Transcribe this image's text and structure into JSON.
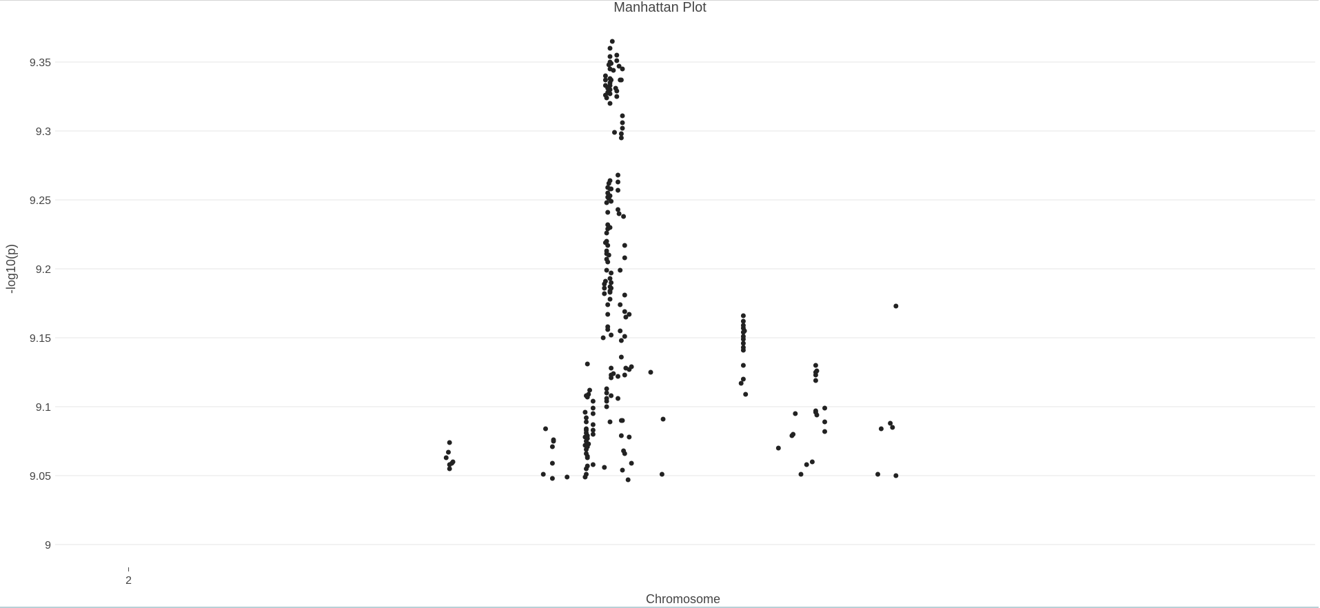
{
  "page": {
    "title": "Manhattan Plot",
    "xlabel": "Chromosome",
    "ylabel": "-log10(p)"
  },
  "chart_data": {
    "type": "scatter",
    "title": "Manhattan Plot",
    "xlabel": "Chromosome",
    "ylabel": "-log10(p)",
    "x_ticks": [
      {
        "value": 2,
        "label": "2"
      }
    ],
    "xlim": [
      1.35,
      12.5
    ],
    "ylim": [
      8.985,
      9.385
    ],
    "y_ticks": [
      {
        "value": 9,
        "label": "9"
      },
      {
        "value": 9.05,
        "label": "9.05"
      },
      {
        "value": 9.1,
        "label": "9.1"
      },
      {
        "value": 9.15,
        "label": "9.15"
      },
      {
        "value": 9.2,
        "label": "9.2"
      },
      {
        "value": 9.25,
        "label": "9.25"
      },
      {
        "value": 9.3,
        "label": "9.3"
      },
      {
        "value": 9.35,
        "label": "9.35"
      }
    ],
    "grid": true,
    "point_color": "#222222",
    "points": [
      [
        4.81,
        9.063
      ],
      [
        4.83,
        9.067
      ],
      [
        4.84,
        9.074
      ],
      [
        4.84,
        9.058
      ],
      [
        4.84,
        9.055
      ],
      [
        4.86,
        9.059
      ],
      [
        4.87,
        9.06
      ],
      [
        5.67,
        9.051
      ],
      [
        5.69,
        9.084
      ],
      [
        5.75,
        9.048
      ],
      [
        5.75,
        9.071
      ],
      [
        5.76,
        9.075
      ],
      [
        5.76,
        9.076
      ],
      [
        5.75,
        9.059
      ],
      [
        5.88,
        9.049
      ],
      [
        6.06,
        9.131
      ],
      [
        6.05,
        9.108
      ],
      [
        6.06,
        9.107
      ],
      [
        6.07,
        9.109
      ],
      [
        6.08,
        9.112
      ],
      [
        6.04,
        9.096
      ],
      [
        6.05,
        9.092
      ],
      [
        6.05,
        9.089
      ],
      [
        6.05,
        9.084
      ],
      [
        6.05,
        9.081
      ],
      [
        6.04,
        9.078
      ],
      [
        6.05,
        9.075
      ],
      [
        6.04,
        9.072
      ],
      [
        6.05,
        9.069
      ],
      [
        6.05,
        9.066
      ],
      [
        6.06,
        9.064
      ],
      [
        6.06,
        9.063
      ],
      [
        6.06,
        9.071
      ],
      [
        6.07,
        9.073
      ],
      [
        6.06,
        9.077
      ],
      [
        6.06,
        9.079
      ],
      [
        6.05,
        9.083
      ],
      [
        6.06,
        9.057
      ],
      [
        6.05,
        9.055
      ],
      [
        6.05,
        9.051
      ],
      [
        6.04,
        9.049
      ],
      [
        6.11,
        9.099
      ],
      [
        6.11,
        9.104
      ],
      [
        6.11,
        9.095
      ],
      [
        6.11,
        9.087
      ],
      [
        6.11,
        9.083
      ],
      [
        6.11,
        9.08
      ],
      [
        6.11,
        9.058
      ],
      [
        6.21,
        9.056
      ],
      [
        6.2,
        9.15
      ],
      [
        6.21,
        9.182
      ],
      [
        6.21,
        9.186
      ],
      [
        6.21,
        9.189
      ],
      [
        6.22,
        9.191
      ],
      [
        6.23,
        9.199
      ],
      [
        6.23,
        9.207
      ],
      [
        6.23,
        9.211
      ],
      [
        6.22,
        9.219
      ],
      [
        6.23,
        9.22
      ],
      [
        6.24,
        9.217
      ],
      [
        6.23,
        9.213
      ],
      [
        6.24,
        9.205
      ],
      [
        6.25,
        9.21
      ],
      [
        6.24,
        9.174
      ],
      [
        6.24,
        9.167
      ],
      [
        6.24,
        9.158
      ],
      [
        6.24,
        9.156
      ],
      [
        6.27,
        9.152
      ],
      [
        6.26,
        9.178
      ],
      [
        6.26,
        9.183
      ],
      [
        6.26,
        9.187
      ],
      [
        6.27,
        9.19
      ],
      [
        6.26,
        9.193
      ],
      [
        6.27,
        9.197
      ],
      [
        6.27,
        9.186
      ],
      [
        6.26,
        9.184
      ],
      [
        6.23,
        9.226
      ],
      [
        6.24,
        9.229
      ],
      [
        6.24,
        9.232
      ],
      [
        6.26,
        9.23
      ],
      [
        6.24,
        9.241
      ],
      [
        6.23,
        9.248
      ],
      [
        6.24,
        9.252
      ],
      [
        6.24,
        9.255
      ],
      [
        6.24,
        9.259
      ],
      [
        6.25,
        9.262
      ],
      [
        6.26,
        9.264
      ],
      [
        6.26,
        9.258
      ],
      [
        6.25,
        9.251
      ],
      [
        6.27,
        9.249
      ],
      [
        6.26,
        9.253
      ],
      [
        6.27,
        9.258
      ],
      [
        6.33,
        9.268
      ],
      [
        6.33,
        9.263
      ],
      [
        6.33,
        9.257
      ],
      [
        6.33,
        9.243
      ],
      [
        6.34,
        9.24
      ],
      [
        6.38,
        9.238
      ],
      [
        6.39,
        9.217
      ],
      [
        6.39,
        9.208
      ],
      [
        6.35,
        9.199
      ],
      [
        6.39,
        9.181
      ],
      [
        6.35,
        9.174
      ],
      [
        6.39,
        9.169
      ],
      [
        6.4,
        9.165
      ],
      [
        6.43,
        9.167
      ],
      [
        6.35,
        9.155
      ],
      [
        6.36,
        9.148
      ],
      [
        6.39,
        9.151
      ],
      [
        6.36,
        9.136
      ],
      [
        6.4,
        9.128
      ],
      [
        6.43,
        9.127
      ],
      [
        6.45,
        9.129
      ],
      [
        6.39,
        9.123
      ],
      [
        6.33,
        9.122
      ],
      [
        6.27,
        9.128
      ],
      [
        6.27,
        9.123
      ],
      [
        6.27,
        9.121
      ],
      [
        6.29,
        9.124
      ],
      [
        6.23,
        9.113
      ],
      [
        6.23,
        9.11
      ],
      [
        6.23,
        9.106
      ],
      [
        6.23,
        9.104
      ],
      [
        6.23,
        9.1
      ],
      [
        6.27,
        9.108
      ],
      [
        6.33,
        9.106
      ],
      [
        6.26,
        9.089
      ],
      [
        6.36,
        9.09
      ],
      [
        6.37,
        9.09
      ],
      [
        6.36,
        9.079
      ],
      [
        6.38,
        9.068
      ],
      [
        6.39,
        9.066
      ],
      [
        6.43,
        9.078
      ],
      [
        6.45,
        9.059
      ],
      [
        6.37,
        9.054
      ],
      [
        6.42,
        9.047
      ],
      [
        6.22,
        9.34
      ],
      [
        6.22,
        9.337
      ],
      [
        6.22,
        9.333
      ],
      [
        6.22,
        9.326
      ],
      [
        6.23,
        9.324
      ],
      [
        6.26,
        9.32
      ],
      [
        6.25,
        9.348
      ],
      [
        6.26,
        9.35
      ],
      [
        6.26,
        9.354
      ],
      [
        6.26,
        9.36
      ],
      [
        6.28,
        9.365
      ],
      [
        6.27,
        9.349
      ],
      [
        6.26,
        9.345
      ],
      [
        6.26,
        9.338
      ],
      [
        6.26,
        9.335
      ],
      [
        6.26,
        9.333
      ],
      [
        6.26,
        9.33
      ],
      [
        6.26,
        9.327
      ],
      [
        6.24,
        9.331
      ],
      [
        6.24,
        9.328
      ],
      [
        6.27,
        9.337
      ],
      [
        6.29,
        9.344
      ],
      [
        6.32,
        9.355
      ],
      [
        6.32,
        9.351
      ],
      [
        6.34,
        9.347
      ],
      [
        6.37,
        9.345
      ],
      [
        6.31,
        9.331
      ],
      [
        6.32,
        9.329
      ],
      [
        6.32,
        9.325
      ],
      [
        6.35,
        9.337
      ],
      [
        6.36,
        9.337
      ],
      [
        6.3,
        9.299
      ],
      [
        6.37,
        9.311
      ],
      [
        6.37,
        9.306
      ],
      [
        6.37,
        9.302
      ],
      [
        6.36,
        9.298
      ],
      [
        6.36,
        9.295
      ],
      [
        6.62,
        9.125
      ],
      [
        6.73,
        9.091
      ],
      [
        6.72,
        9.051
      ],
      [
        7.42,
        9.117
      ],
      [
        7.44,
        9.12
      ],
      [
        7.46,
        9.109
      ],
      [
        7.44,
        9.13
      ],
      [
        7.44,
        9.141
      ],
      [
        7.44,
        9.143
      ],
      [
        7.44,
        9.146
      ],
      [
        7.44,
        9.149
      ],
      [
        7.44,
        9.151
      ],
      [
        7.44,
        9.154
      ],
      [
        7.44,
        9.157
      ],
      [
        7.44,
        9.159
      ],
      [
        7.44,
        9.162
      ],
      [
        7.44,
        9.166
      ],
      [
        7.45,
        9.155
      ],
      [
        7.75,
        9.07
      ],
      [
        7.87,
        9.079
      ],
      [
        7.88,
        9.08
      ],
      [
        7.9,
        9.095
      ],
      [
        7.95,
        9.051
      ],
      [
        8.0,
        9.058
      ],
      [
        8.05,
        9.06
      ],
      [
        8.08,
        9.096
      ],
      [
        8.08,
        9.097
      ],
      [
        8.09,
        9.094
      ],
      [
        8.08,
        9.119
      ],
      [
        8.08,
        9.123
      ],
      [
        8.09,
        9.126
      ],
      [
        8.08,
        9.125
      ],
      [
        8.08,
        9.13
      ],
      [
        8.16,
        9.099
      ],
      [
        8.16,
        9.089
      ],
      [
        8.16,
        9.082
      ],
      [
        8.63,
        9.051
      ],
      [
        8.66,
        9.084
      ],
      [
        8.74,
        9.088
      ],
      [
        8.76,
        9.085
      ],
      [
        8.79,
        9.05
      ],
      [
        8.79,
        9.173
      ]
    ]
  }
}
